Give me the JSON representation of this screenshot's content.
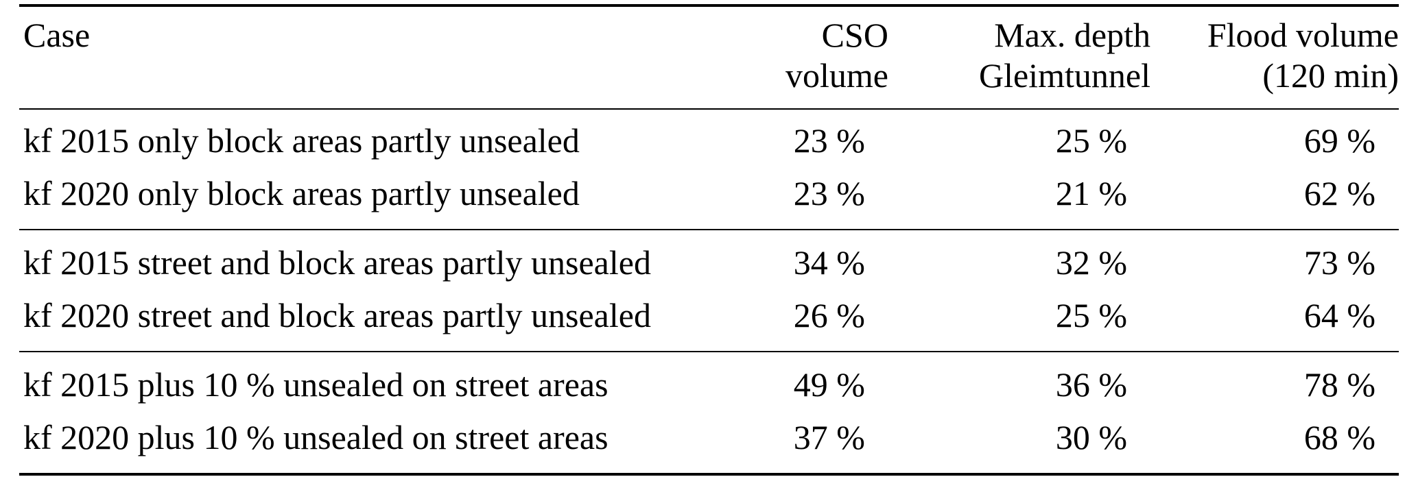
{
  "table": {
    "header": {
      "case": "Case",
      "cso_line1": "CSO",
      "cso_line2": "volume",
      "depth_line1": "Max. depth",
      "depth_line2": "Gleimtunnel",
      "flood_line1": "Flood volume",
      "flood_line2": "(120 min)"
    },
    "rows": [
      {
        "case": "kf 2015 only block areas partly unsealed",
        "cso": "23 %",
        "depth": "25 %",
        "flood": "69 %"
      },
      {
        "case": "kf 2020 only block areas partly unsealed",
        "cso": "23 %",
        "depth": "21 %",
        "flood": "62 %"
      },
      {
        "case": "kf 2015 street and block areas partly unsealed",
        "cso": "34 %",
        "depth": "32 %",
        "flood": "73 %"
      },
      {
        "case": "kf 2020 street and block areas partly unsealed",
        "cso": "26 %",
        "depth": "25 %",
        "flood": "64 %"
      },
      {
        "case": "kf 2015 plus 10 % unsealed on street areas",
        "cso": "49 %",
        "depth": "36 %",
        "flood": "78 %"
      },
      {
        "case": "kf 2020 plus 10 % unsealed on street areas",
        "cso": "37 %",
        "depth": "30 %",
        "flood": "68 %"
      }
    ]
  }
}
